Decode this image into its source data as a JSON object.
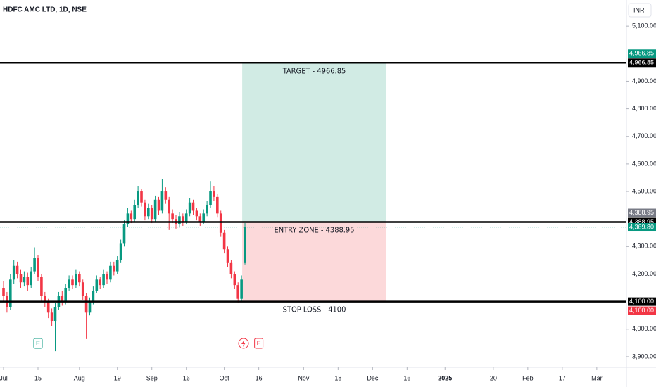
{
  "chart_data": {
    "type": "candlestick",
    "title": "HDFC AMC LTD, 1D, NSE",
    "currency": "INR",
    "up_color": "#089981",
    "down_color": "#f23645",
    "xlim": [
      -1.02,
      180.6
    ],
    "ylim": [
      3861.5,
      5194.9
    ],
    "yticks": [
      {
        "value": 3900,
        "label": "3,900.00"
      },
      {
        "value": 4000,
        "label": "4,000.00"
      },
      {
        "value": 4200,
        "label": "4,200.00"
      },
      {
        "value": 4300,
        "label": "4,300.00"
      },
      {
        "value": 4500,
        "label": "4,500.00"
      },
      {
        "value": 4600,
        "label": "4,600.00"
      },
      {
        "value": 4700,
        "label": "4,700.00"
      },
      {
        "value": 4800,
        "label": "4,800.00"
      },
      {
        "value": 4900,
        "label": "4,900.00"
      },
      {
        "value": 5100,
        "label": "5,100.00"
      }
    ],
    "xticks": [
      {
        "value": 0,
        "label": "Jul"
      },
      {
        "value": 10,
        "label": "15"
      },
      {
        "value": 22,
        "label": "Aug"
      },
      {
        "value": 33,
        "label": "19"
      },
      {
        "value": 43,
        "label": "Sep"
      },
      {
        "value": 53,
        "label": "16"
      },
      {
        "value": 64,
        "label": "Oct"
      },
      {
        "value": 74,
        "label": "16"
      },
      {
        "value": 87,
        "label": "Nov"
      },
      {
        "value": 97,
        "label": "18"
      },
      {
        "value": 107,
        "label": "Dec"
      },
      {
        "value": 117,
        "label": "16"
      },
      {
        "value": 128,
        "label": "2025"
      },
      {
        "value": 142,
        "label": "20"
      },
      {
        "value": 152,
        "label": "Feb"
      },
      {
        "value": 162,
        "label": "17"
      },
      {
        "value": 172,
        "label": "Mar"
      }
    ],
    "x": [
      0,
      1,
      2,
      3,
      4,
      5,
      6,
      7,
      8,
      9,
      10,
      11,
      12,
      13,
      14,
      15,
      16,
      17,
      18,
      19,
      20,
      21,
      22,
      23,
      24,
      25,
      26,
      27,
      28,
      29,
      30,
      31,
      32,
      33,
      34,
      35,
      36,
      37,
      38,
      39,
      40,
      41,
      42,
      43,
      44,
      45,
      46,
      47,
      48,
      49,
      50,
      51,
      52,
      53,
      54,
      55,
      56,
      57,
      58,
      59,
      60,
      61,
      62,
      63,
      64,
      65,
      66,
      67,
      68,
      69,
      70
    ],
    "open": [
      4150,
      4120,
      4080,
      4180,
      4230,
      4200,
      4170,
      4190,
      4160,
      4210,
      4260,
      4190,
      4120,
      4100,
      4060,
      4030,
      4080,
      4120,
      4100,
      4150,
      4180,
      4160,
      4200,
      4170,
      4120,
      4060,
      4100,
      4140,
      4180,
      4160,
      4200,
      4180,
      4230,
      4210,
      4250,
      4310,
      4380,
      4420,
      4400,
      4450,
      4500,
      4460,
      4410,
      4440,
      4400,
      4470,
      4430,
      4500,
      4470,
      4420,
      4400,
      4380,
      4410,
      4390,
      4420,
      4460,
      4430,
      4410,
      4390,
      4420,
      4450,
      4500,
      4480,
      4420,
      4350,
      4290,
      4240,
      4200,
      4160,
      4110,
      4240
    ],
    "high": [
      4175,
      4135,
      4200,
      4250,
      4245,
      4215,
      4210,
      4205,
      4225,
      4297,
      4270,
      4200,
      4135,
      4110,
      4075,
      4095,
      4135,
      4140,
      4165,
      4195,
      4195,
      4215,
      4210,
      4180,
      4130,
      4115,
      4155,
      4195,
      4190,
      4215,
      4210,
      4245,
      4245,
      4265,
      4325,
      4395,
      4440,
      4430,
      4470,
      4520,
      4510,
      4470,
      4455,
      4450,
      4485,
      4480,
      4544,
      4515,
      4480,
      4435,
      4415,
      4425,
      4420,
      4435,
      4475,
      4470,
      4440,
      4420,
      4435,
      4465,
      4538,
      4520,
      4490,
      4430,
      4360,
      4300,
      4250,
      4210,
      4170,
      4195,
      4385
    ],
    "low": [
      4100,
      4060,
      4070,
      4165,
      4185,
      4150,
      4155,
      4140,
      4150,
      4200,
      4175,
      4100,
      4080,
      4040,
      4010,
      3920,
      4070,
      4085,
      4090,
      4140,
      4145,
      4150,
      4155,
      4105,
      3964,
      4050,
      4090,
      4130,
      4145,
      4150,
      4165,
      4170,
      4195,
      4200,
      4240,
      4300,
      4370,
      4385,
      4390,
      4440,
      4445,
      4395,
      4400,
      4385,
      4390,
      4415,
      4420,
      4455,
      4360,
      4385,
      4365,
      4370,
      4375,
      4380,
      4410,
      4415,
      4395,
      4375,
      4380,
      4410,
      4440,
      4465,
      4405,
      4335,
      4275,
      4225,
      4185,
      4145,
      4097,
      4100,
      4235
    ],
    "close": [
      4120,
      4080,
      4180,
      4230,
      4200,
      4170,
      4190,
      4160,
      4210,
      4260,
      4190,
      4120,
      4100,
      4060,
      4030,
      4080,
      4120,
      4100,
      4150,
      4180,
      4160,
      4200,
      4170,
      4120,
      4060,
      4100,
      4140,
      4180,
      4160,
      4200,
      4180,
      4230,
      4210,
      4250,
      4310,
      4380,
      4420,
      4400,
      4450,
      4500,
      4460,
      4410,
      4440,
      4400,
      4470,
      4430,
      4500,
      4470,
      4420,
      4400,
      4380,
      4410,
      4390,
      4420,
      4460,
      4430,
      4410,
      4390,
      4420,
      4450,
      4500,
      4480,
      4420,
      4350,
      4290,
      4240,
      4200,
      4160,
      4110,
      4180,
      4369.8
    ],
    "levels": [
      {
        "label": "TARGET - 4966.85",
        "value": 4966.85,
        "price_label": "4,966.85"
      },
      {
        "label": "ENTRY ZONE - 4388.95",
        "value": 4388.95,
        "price_label": "4,388.95"
      },
      {
        "label": "STOP LOSS - 4100",
        "value": 4100,
        "price_label": "4,100.00"
      }
    ],
    "zone": {
      "start": 69.2,
      "end": 111,
      "target_color": "#d1ebe4",
      "stop_color": "#fcd9da"
    },
    "tool_labels": [
      {
        "value": 4966.85,
        "label": "4,966.85",
        "color": "#089981",
        "side": "above"
      },
      {
        "value": 4388.95,
        "label": "4,388.95",
        "color": "#787b86",
        "side": "above"
      },
      {
        "value": 4100,
        "label": "4,100.00",
        "color": "#f23645",
        "side": "below"
      }
    ],
    "last_price": {
      "value": 4369.8,
      "label": "4,369.80",
      "color": "#089981"
    },
    "events": [
      {
        "x": 10,
        "label": "E",
        "color": "#089981"
      },
      {
        "x": 74,
        "label": "E",
        "color": "#f23645"
      }
    ]
  }
}
